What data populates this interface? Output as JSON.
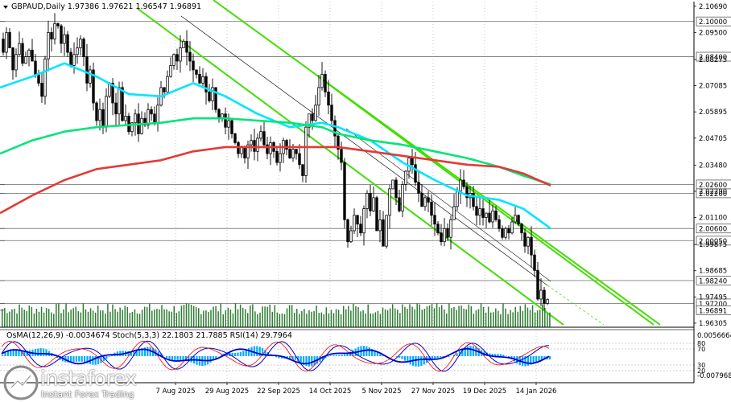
{
  "header": {
    "symbol_line": "GBPAUD,Daily  1.97386 1.97621 1.96547 1.96891"
  },
  "indicator": {
    "label": "OsMA(12,26,9) -0.0034674  Stoch(5,3,3) 22.1803 21.7885  RSI(14) 29.7964",
    "axis_top": "0.0056664",
    "axis_bottom": "-0.007968",
    "levels": [
      "80",
      "70",
      "30",
      "20"
    ]
  },
  "logo": {
    "brand": "instaforex",
    "tagline": "Instant Forex Trading"
  },
  "colors": {
    "candle": "#000000",
    "ma_fast": "#00e5ff",
    "ma_mid": "#00e676",
    "ma_slow": "#e53935",
    "channel": "#44dd00",
    "trendline": "#1a1a1a",
    "volume": "#2e7d32",
    "osma": "#00aaff",
    "stoch_main": "#0000cc",
    "stoch_signal": "#ff0000",
    "rsi": "#0000cc"
  },
  "chart_data": {
    "type": "candlestick",
    "symbol": "GBPAUD",
    "timeframe": "Daily",
    "ohlc_last": {
      "open": 1.97386,
      "high": 1.97621,
      "low": 1.96547,
      "close": 1.96891
    },
    "x_tick_labels": [
      "7 Aug 2025",
      "29 Aug 2025",
      "22 Sep 2025",
      "14 Oct 2025",
      "5 Nov 2025",
      "27 Nov 2025",
      "19 Dec 2025",
      "14 Jan 2026"
    ],
    "y_tick_labels": [
      "2.10690",
      "2.09500",
      "2.08275",
      "2.07085",
      "2.05895",
      "2.04705",
      "2.03480",
      "2.02290",
      "2.01100",
      "1.99875",
      "1.98685",
      "1.97495",
      "1.96305"
    ],
    "y_range": [
      1.9612,
      2.109
    ],
    "price_levels": [
      "2.10000",
      "2.08400",
      "2.02600",
      "2.02200",
      "2.00600",
      "2.00050",
      "1.98240",
      "1.97200",
      "1.96891"
    ],
    "close_path": [
      [
        0,
        2.092
      ],
      [
        4,
        2.086
      ],
      [
        8,
        2.095
      ],
      [
        12,
        2.088
      ],
      [
        16,
        2.078
      ],
      [
        20,
        2.085
      ],
      [
        24,
        2.09
      ],
      [
        28,
        2.081
      ],
      [
        32,
        2.084
      ],
      [
        36,
        2.087
      ],
      [
        40,
        2.082
      ],
      [
        44,
        2.076
      ],
      [
        48,
        2.072
      ],
      [
        52,
        2.066
      ],
      [
        56,
        2.083
      ],
      [
        60,
        2.095
      ],
      [
        64,
        2.092
      ],
      [
        68,
        2.099
      ],
      [
        72,
        2.098
      ],
      [
        76,
        2.09
      ],
      [
        80,
        2.094
      ],
      [
        84,
        2.086
      ],
      [
        88,
        2.08
      ],
      [
        92,
        2.085
      ],
      [
        96,
        2.088
      ],
      [
        100,
        2.092
      ],
      [
        104,
        2.084
      ],
      [
        108,
        2.072
      ],
      [
        112,
        2.078
      ],
      [
        116,
        2.063
      ],
      [
        120,
        2.055
      ],
      [
        124,
        2.06
      ],
      [
        128,
        2.052
      ],
      [
        132,
        2.066
      ],
      [
        136,
        2.072
      ],
      [
        140,
        2.063
      ],
      [
        144,
        2.058
      ],
      [
        148,
        2.07
      ],
      [
        152,
        2.055
      ],
      [
        156,
        2.057
      ],
      [
        160,
        2.05
      ],
      [
        164,
        2.054
      ],
      [
        168,
        2.058
      ],
      [
        172,
        2.049
      ],
      [
        176,
        2.056
      ],
      [
        180,
        2.053
      ],
      [
        184,
        2.06
      ],
      [
        188,
        2.058
      ],
      [
        192,
        2.054
      ],
      [
        196,
        2.062
      ],
      [
        200,
        2.07
      ],
      [
        204,
        2.068
      ],
      [
        208,
        2.075
      ],
      [
        212,
        2.08
      ],
      [
        216,
        2.085
      ],
      [
        220,
        2.082
      ],
      [
        224,
        2.088
      ],
      [
        228,
        2.091
      ],
      [
        232,
        2.086
      ],
      [
        236,
        2.082
      ],
      [
        240,
        2.078
      ],
      [
        244,
        2.076
      ],
      [
        248,
        2.072
      ],
      [
        252,
        2.075
      ],
      [
        256,
        2.068
      ],
      [
        260,
        2.064
      ],
      [
        264,
        2.07
      ],
      [
        268,
        2.06
      ],
      [
        272,
        2.056
      ],
      [
        276,
        2.058
      ],
      [
        280,
        2.052
      ],
      [
        284,
        2.055
      ],
      [
        288,
        2.049
      ],
      [
        292,
        2.045
      ],
      [
        296,
        2.04
      ],
      [
        300,
        2.043
      ],
      [
        304,
        2.038
      ],
      [
        308,
        2.044
      ],
      [
        312,
        2.046
      ],
      [
        316,
        2.041
      ],
      [
        320,
        2.047
      ],
      [
        324,
        2.05
      ],
      [
        328,
        2.044
      ],
      [
        332,
        2.04
      ],
      [
        336,
        2.045
      ],
      [
        340,
        2.041
      ],
      [
        344,
        2.036
      ],
      [
        348,
        2.04
      ],
      [
        352,
        2.046
      ],
      [
        356,
        2.042
      ],
      [
        360,
        2.038
      ],
      [
        364,
        2.042
      ],
      [
        368,
        2.04
      ],
      [
        372,
        2.035
      ],
      [
        376,
        2.03
      ],
      [
        380,
        2.052
      ],
      [
        384,
        2.058
      ],
      [
        388,
        2.055
      ],
      [
        392,
        2.062
      ],
      [
        396,
        2.07
      ],
      [
        400,
        2.076
      ],
      [
        404,
        2.068
      ],
      [
        408,
        2.062
      ],
      [
        412,
        2.055
      ],
      [
        416,
        2.048
      ],
      [
        420,
        2.042
      ],
      [
        424,
        2.036
      ],
      [
        428,
        2.01
      ],
      [
        432,
        2.0
      ],
      [
        436,
        2.005
      ],
      [
        440,
        2.012
      ],
      [
        444,
        2.008
      ],
      [
        448,
        2.004
      ],
      [
        452,
        2.015
      ],
      [
        456,
        2.022
      ],
      [
        460,
        2.014
      ],
      [
        464,
        2.02
      ],
      [
        468,
        2.005
      ],
      [
        472,
        2.01
      ],
      [
        476,
        1.998
      ],
      [
        480,
        2.012
      ],
      [
        484,
        2.024
      ],
      [
        488,
        2.028
      ],
      [
        492,
        2.02
      ],
      [
        496,
        2.014
      ],
      [
        500,
        2.026
      ],
      [
        504,
        2.032
      ],
      [
        508,
        2.038
      ],
      [
        512,
        2.035
      ],
      [
        516,
        2.027
      ],
      [
        520,
        2.022
      ],
      [
        524,
        2.016
      ],
      [
        528,
        2.02
      ],
      [
        532,
        2.018
      ],
      [
        536,
        2.012
      ],
      [
        540,
        2.008
      ],
      [
        544,
        2.004
      ],
      [
        548,
        2.0
      ],
      [
        552,
        2.006
      ],
      [
        556,
        2.002
      ],
      [
        560,
        2.01
      ],
      [
        564,
        2.016
      ],
      [
        568,
        2.023
      ],
      [
        572,
        2.028
      ],
      [
        576,
        2.025
      ],
      [
        580,
        2.02
      ],
      [
        584,
        2.022
      ],
      [
        588,
        2.016
      ],
      [
        592,
        2.012
      ],
      [
        596,
        2.015
      ],
      [
        600,
        2.011
      ],
      [
        604,
        2.013
      ],
      [
        608,
        2.009
      ],
      [
        612,
        2.014
      ],
      [
        616,
        2.01
      ],
      [
        620,
        2.006
      ],
      [
        624,
        2.002
      ],
      [
        628,
        2.006
      ],
      [
        632,
        2.004
      ],
      [
        636,
        2.009
      ],
      [
        640,
        2.012
      ],
      [
        644,
        2.008
      ],
      [
        648,
        2.004
      ],
      [
        652,
        1.998
      ],
      [
        656,
        2.002
      ],
      [
        660,
        1.994
      ],
      [
        664,
        1.987
      ],
      [
        668,
        1.974
      ],
      [
        672,
        1.978
      ],
      [
        676,
        1.972
      ],
      [
        680,
        1.97386
      ]
    ],
    "series": [
      {
        "values": [
          [
            0,
            2.07
          ],
          [
            40,
            2.075
          ],
          [
            80,
            2.081
          ],
          [
            120,
            2.075
          ],
          [
            160,
            2.067
          ],
          [
            200,
            2.066
          ],
          [
            240,
            2.072
          ],
          [
            280,
            2.066
          ],
          [
            320,
            2.058
          ],
          [
            360,
            2.052
          ],
          [
            400,
            2.054
          ],
          [
            420,
            2.052
          ],
          [
            460,
            2.046
          ],
          [
            500,
            2.036
          ],
          [
            540,
            2.028
          ],
          [
            580,
            2.021
          ],
          [
            620,
            2.019
          ],
          [
            650,
            2.015
          ],
          [
            684,
            2.006
          ]
        ]
      },
      {
        "values": [
          [
            0,
            2.04
          ],
          [
            40,
            2.046
          ],
          [
            80,
            2.05
          ],
          [
            120,
            2.052
          ],
          [
            160,
            2.053
          ],
          [
            200,
            2.054
          ],
          [
            240,
            2.056
          ],
          [
            280,
            2.056
          ],
          [
            320,
            2.055
          ],
          [
            360,
            2.054
          ],
          [
            400,
            2.052
          ],
          [
            420,
            2.049
          ],
          [
            460,
            2.046
          ],
          [
            500,
            2.044
          ],
          [
            540,
            2.041
          ],
          [
            580,
            2.038
          ],
          [
            620,
            2.034
          ],
          [
            650,
            2.03
          ],
          [
            684,
            2.026
          ]
        ]
      },
      {
        "values": [
          [
            0,
            2.013
          ],
          [
            40,
            2.021
          ],
          [
            80,
            2.028
          ],
          [
            120,
            2.033
          ],
          [
            160,
            2.035
          ],
          [
            200,
            2.037
          ],
          [
            240,
            2.041
          ],
          [
            280,
            2.043
          ],
          [
            320,
            2.043
          ],
          [
            360,
            2.043
          ],
          [
            400,
            2.043
          ],
          [
            420,
            2.043
          ],
          [
            460,
            2.041
          ],
          [
            500,
            2.039
          ],
          [
            540,
            2.037
          ],
          [
            580,
            2.035
          ],
          [
            620,
            2.034
          ],
          [
            650,
            2.031
          ],
          [
            684,
            2.0255
          ]
        ]
      }
    ]
  }
}
